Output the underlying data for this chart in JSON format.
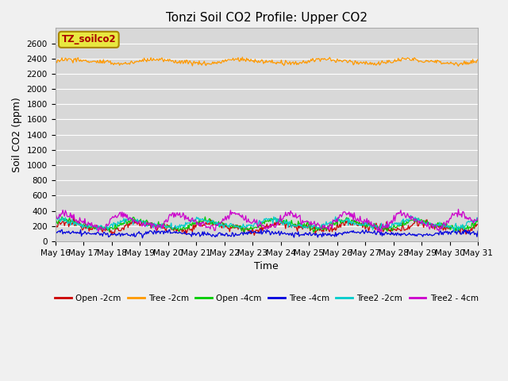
{
  "title": "Tonzi Soil CO2 Profile: Upper CO2",
  "xlabel": "Time",
  "ylabel": "Soil CO2 (ppm)",
  "ylim": [
    0,
    2800
  ],
  "yticks": [
    0,
    200,
    400,
    600,
    800,
    1000,
    1200,
    1400,
    1600,
    1800,
    2000,
    2200,
    2400,
    2600
  ],
  "fig_bg_color": "#f0f0f0",
  "plot_bg_color": "#d8d8d8",
  "legend_label": "TZ_soilco2",
  "legend_bg": "#e8e840",
  "legend_border": "#aa8800",
  "series_info": [
    {
      "key": "Open_2cm",
      "color": "#cc0000",
      "label": "Open -2cm",
      "mean": 190,
      "amp": 45,
      "phase": 0.0,
      "noise": 25,
      "freq": 2.5
    },
    {
      "key": "Tree_2cm",
      "color": "#ff9900",
      "label": "Tree -2cm",
      "mean": 2360,
      "amp": 25,
      "phase": 0.2,
      "noise": 15,
      "freq": 3.0
    },
    {
      "key": "Open_4cm",
      "color": "#00cc00",
      "label": "Open -4cm",
      "mean": 220,
      "amp": 50,
      "phase": 0.5,
      "noise": 20,
      "freq": 2.5
    },
    {
      "key": "Tree_4cm",
      "color": "#0000dd",
      "label": "Tree -4cm",
      "mean": 100,
      "amp": 18,
      "phase": 0.8,
      "noise": 15,
      "freq": 3.5
    },
    {
      "key": "Tree2_2cm",
      "color": "#00cccc",
      "label": "Tree2 -2cm",
      "mean": 230,
      "amp": 48,
      "phase": 1.0,
      "noise": 20,
      "freq": 2.5
    },
    {
      "key": "Tree2_4cm",
      "color": "#cc00cc",
      "label": "Tree2 - 4cm",
      "mean": 265,
      "amp": 80,
      "phase": 0.2,
      "noise": 25,
      "freq": 2.0
    }
  ],
  "n_points": 500,
  "title_fontsize": 11,
  "tick_fontsize": 7.5,
  "label_fontsize": 9
}
